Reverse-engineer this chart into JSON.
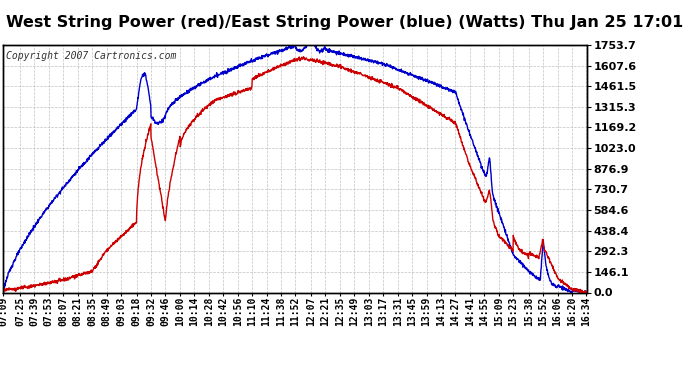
{
  "title": "West String Power (red)/East String Power (blue) (Watts) Thu Jan 25 17:01",
  "copyright": "Copyright 2007 Cartronics.com",
  "background_color": "#ffffff",
  "plot_bg_color": "#ffffff",
  "grid_color": "#bbbbbb",
  "yticks": [
    0.0,
    146.1,
    292.3,
    438.4,
    584.6,
    730.7,
    876.9,
    1023.0,
    1169.2,
    1315.3,
    1461.5,
    1607.6,
    1753.7
  ],
  "xtick_labels": [
    "07:09",
    "07:25",
    "07:39",
    "07:53",
    "08:07",
    "08:21",
    "08:35",
    "08:49",
    "09:03",
    "09:18",
    "09:32",
    "09:46",
    "10:00",
    "10:14",
    "10:28",
    "10:42",
    "10:56",
    "11:10",
    "11:24",
    "11:38",
    "11:52",
    "12:07",
    "12:21",
    "12:35",
    "12:49",
    "13:03",
    "13:17",
    "13:31",
    "13:45",
    "13:59",
    "14:13",
    "14:27",
    "14:41",
    "14:55",
    "15:09",
    "15:23",
    "15:38",
    "15:52",
    "16:06",
    "16:20",
    "16:34"
  ],
  "ymax": 1753.7,
  "ymin": 0.0,
  "west_color": "#cc0000",
  "east_color": "#0000cc",
  "title_fontsize": 11.5,
  "copyright_fontsize": 7,
  "tick_fontsize": 7,
  "title_color": "#000000"
}
